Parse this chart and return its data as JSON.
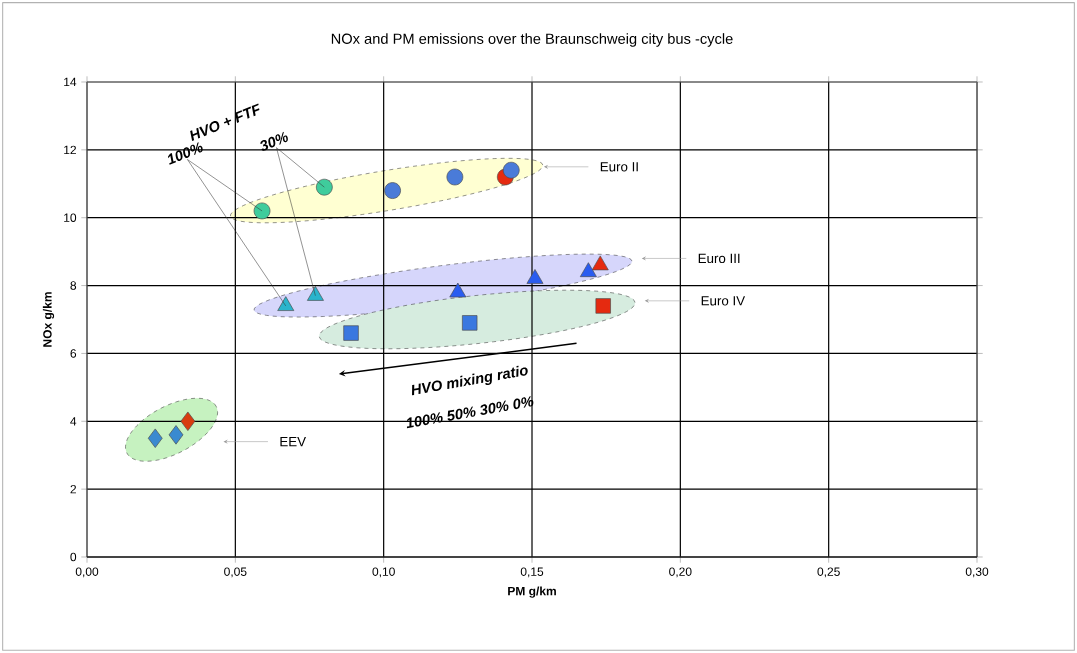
{
  "chart_data": {
    "type": "scatter",
    "title": "NOx and PM emissions over the Braunschweig city bus -cycle",
    "xlabel": "PM g/km",
    "ylabel": "NOx g/km",
    "xlim": [
      0,
      0.3
    ],
    "ylim": [
      0,
      14
    ],
    "xticks": [
      {
        "value": 0,
        "label": "0,00"
      },
      {
        "value": 0.05,
        "label": "0,05"
      },
      {
        "value": 0.1,
        "label": "0,10"
      },
      {
        "value": 0.15,
        "label": "0,15"
      },
      {
        "value": 0.2,
        "label": "0,20"
      },
      {
        "value": 0.25,
        "label": "0,25"
      },
      {
        "value": 0.3,
        "label": "0,30"
      }
    ],
    "yticks": [
      0,
      2,
      4,
      6,
      8,
      10,
      12,
      14
    ],
    "grid": true,
    "series": [
      {
        "color": "#3fcc9c",
        "marker": "circle",
        "x": [
          0.059,
          0.08
        ],
        "values": [
          10.2,
          10.9
        ]
      },
      {
        "color": "#e52a10",
        "marker": "circle",
        "x": [
          0.141
        ],
        "values": [
          11.2
        ]
      },
      {
        "color": "#4a7bd8",
        "marker": "circle",
        "x": [
          0.103,
          0.124,
          0.143
        ],
        "values": [
          10.8,
          11.2,
          11.4
        ]
      },
      {
        "color": "#2ab4cc",
        "marker": "triangle",
        "x": [
          0.067,
          0.077
        ],
        "values": [
          7.4,
          7.7
        ]
      },
      {
        "color": "#e52a10",
        "marker": "triangle",
        "x": [
          0.173
        ],
        "values": [
          8.6
        ]
      },
      {
        "color": "#2a5cf0",
        "marker": "triangle",
        "x": [
          0.125,
          0.151,
          0.169
        ],
        "values": [
          7.8,
          8.2,
          8.4
        ]
      },
      {
        "color": "#3a78e0",
        "marker": "square",
        "x": [
          0.089,
          0.129
        ],
        "values": [
          6.6,
          6.9
        ]
      },
      {
        "color": "#e52a10",
        "marker": "square",
        "x": [
          0.174
        ],
        "values": [
          7.4
        ]
      },
      {
        "color": "#3a8ad0",
        "marker": "diamond",
        "x": [
          0.023,
          0.03
        ],
        "values": [
          3.5,
          3.6
        ]
      },
      {
        "color": "#d83c10",
        "marker": "diamond",
        "x": [
          0.034
        ],
        "values": [
          4.0
        ]
      }
    ],
    "annotations": [
      "Euro II",
      "Euro III",
      "Euro IV",
      "EEV",
      "HVO + FTF",
      {
        "text": "100%",
        "x": 0.059,
        "y": 10.2
      },
      {
        "text": "30%",
        "x": 0.08,
        "y": 10.9
      },
      "HVO mixing ratio",
      "100% 50% 30% 0%"
    ]
  }
}
